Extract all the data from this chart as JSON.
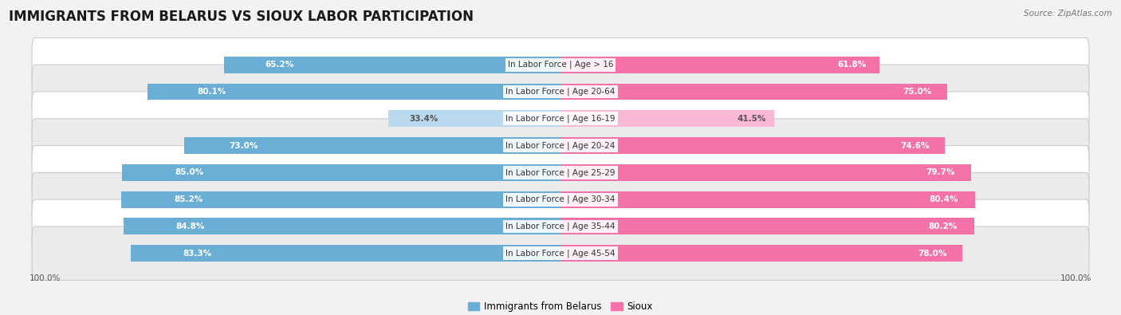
{
  "title": "IMMIGRANTS FROM BELARUS VS SIOUX LABOR PARTICIPATION",
  "source": "Source: ZipAtlas.com",
  "categories": [
    "In Labor Force | Age > 16",
    "In Labor Force | Age 20-64",
    "In Labor Force | Age 16-19",
    "In Labor Force | Age 20-24",
    "In Labor Force | Age 25-29",
    "In Labor Force | Age 30-34",
    "In Labor Force | Age 35-44",
    "In Labor Force | Age 45-54"
  ],
  "belarus_values": [
    65.2,
    80.1,
    33.4,
    73.0,
    85.0,
    85.2,
    84.8,
    83.3
  ],
  "sioux_values": [
    61.8,
    75.0,
    41.5,
    74.6,
    79.7,
    80.4,
    80.2,
    78.0
  ],
  "belarus_color": "#6aaed6",
  "belarus_light_color": "#b8d9ee",
  "sioux_color": "#f472a8",
  "sioux_light_color": "#f9b8d5",
  "bar_height": 0.62,
  "max_value": 100.0,
  "background_color": "#f2f2f2",
  "row_even_color": "#ffffff",
  "row_odd_color": "#ebebeb",
  "title_fontsize": 12,
  "label_fontsize": 7.5,
  "value_fontsize": 7.5,
  "legend_fontsize": 8.5,
  "axis_label_fontsize": 7.5
}
